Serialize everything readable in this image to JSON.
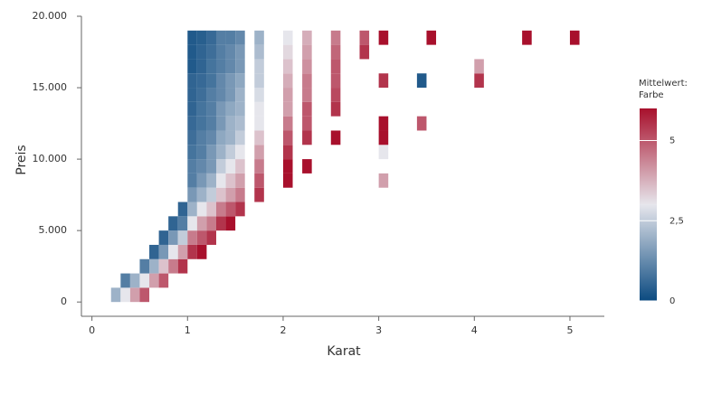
{
  "chart_data": {
    "type": "heatmap",
    "xlabel": "Karat",
    "ylabel": "Preis",
    "xlim": [
      -0.11,
      5.36
    ],
    "xticks": [
      0,
      1,
      2,
      3,
      4,
      5
    ],
    "ylim": [
      -1000,
      20000
    ],
    "yticks": [
      0,
      {
        "value": 5000,
        "label": "5.000"
      },
      {
        "value": 10000,
        "label": "10.000"
      },
      {
        "value": 15000,
        "label": "15.000"
      },
      {
        "value": 20000,
        "label": "20.000"
      }
    ],
    "colorbar_title": [
      "Mittelwert:",
      "Farbe"
    ],
    "clim": [
      0,
      6
    ],
    "cticks": [
      0,
      {
        "value": 2.5,
        "label": "2,5"
      },
      5
    ],
    "colormap": [
      "#0b4a80",
      "#e6e6ec",
      "#a8102c"
    ],
    "cells": [
      [
        0.2,
        0,
        2
      ],
      [
        0.3,
        0,
        3
      ],
      [
        0.3,
        1000,
        1
      ],
      [
        0.4,
        0,
        4
      ],
      [
        0.4,
        1000,
        2
      ],
      [
        0.5,
        0,
        5
      ],
      [
        0.5,
        1000,
        3
      ],
      [
        0.5,
        2000,
        1
      ],
      [
        0.6,
        1000,
        4
      ],
      [
        0.6,
        2000,
        2
      ],
      [
        0.6,
        3000,
        0.5
      ],
      [
        0.7,
        1000,
        5
      ],
      [
        0.7,
        2000,
        3.5
      ],
      [
        0.7,
        3000,
        1.5
      ],
      [
        0.7,
        4000,
        0.5
      ],
      [
        0.8,
        2000,
        4.5
      ],
      [
        0.8,
        3000,
        3
      ],
      [
        0.8,
        4000,
        1.5
      ],
      [
        0.8,
        5000,
        0.5
      ],
      [
        0.9,
        2000,
        5.5
      ],
      [
        0.9,
        3000,
        4
      ],
      [
        0.9,
        4000,
        2.5
      ],
      [
        0.9,
        5000,
        1
      ],
      [
        0.9,
        6000,
        0.5
      ],
      [
        1.0,
        3000,
        5.5
      ],
      [
        1.0,
        4000,
        4.5
      ],
      [
        1.0,
        5000,
        3
      ],
      [
        1.0,
        6000,
        2
      ],
      [
        1.0,
        7000,
        1.5
      ],
      [
        1.0,
        8000,
        1
      ],
      [
        1.0,
        9000,
        1
      ],
      [
        1.0,
        10000,
        0.8
      ],
      [
        1.0,
        11000,
        0.7
      ],
      [
        1.0,
        12000,
        0.6
      ],
      [
        1.0,
        13000,
        0.5
      ],
      [
        1.0,
        14000,
        0.5
      ],
      [
        1.0,
        15000,
        0.5
      ],
      [
        1.0,
        16000,
        0.3
      ],
      [
        1.0,
        17000,
        0.3
      ],
      [
        1.0,
        18000,
        0.3
      ],
      [
        1.1,
        3000,
        6
      ],
      [
        1.1,
        4000,
        5
      ],
      [
        1.1,
        5000,
        4
      ],
      [
        1.1,
        6000,
        3
      ],
      [
        1.1,
        7000,
        2
      ],
      [
        1.1,
        8000,
        1.5
      ],
      [
        1.1,
        9000,
        1.2
      ],
      [
        1.1,
        10000,
        1
      ],
      [
        1.1,
        11000,
        1
      ],
      [
        1.1,
        12000,
        0.8
      ],
      [
        1.1,
        13000,
        0.8
      ],
      [
        1.1,
        14000,
        0.7
      ],
      [
        1.1,
        15000,
        0.6
      ],
      [
        1.1,
        16000,
        0.5
      ],
      [
        1.1,
        17000,
        0.5
      ],
      [
        1.1,
        18000,
        0.4
      ],
      [
        1.2,
        4000,
        5.5
      ],
      [
        1.2,
        5000,
        4.5
      ],
      [
        1.2,
        6000,
        3.5
      ],
      [
        1.2,
        7000,
        2.5
      ],
      [
        1.2,
        8000,
        2
      ],
      [
        1.2,
        9000,
        1.5
      ],
      [
        1.2,
        10000,
        1.5
      ],
      [
        1.2,
        11000,
        1.2
      ],
      [
        1.2,
        12000,
        1
      ],
      [
        1.2,
        13000,
        1
      ],
      [
        1.2,
        14000,
        1
      ],
      [
        1.2,
        15000,
        0.8
      ],
      [
        1.2,
        16000,
        0.8
      ],
      [
        1.2,
        17000,
        0.7
      ],
      [
        1.2,
        18000,
        0.6
      ],
      [
        1.3,
        5000,
        5.5
      ],
      [
        1.3,
        6000,
        4.5
      ],
      [
        1.3,
        7000,
        3.5
      ],
      [
        1.3,
        8000,
        3
      ],
      [
        1.3,
        9000,
        2.5
      ],
      [
        1.3,
        10000,
        2
      ],
      [
        1.3,
        11000,
        1.8
      ],
      [
        1.3,
        12000,
        1.5
      ],
      [
        1.3,
        13000,
        1.5
      ],
      [
        1.3,
        14000,
        1.2
      ],
      [
        1.3,
        15000,
        1.2
      ],
      [
        1.3,
        16000,
        1
      ],
      [
        1.3,
        17000,
        1
      ],
      [
        1.3,
        18000,
        1
      ],
      [
        1.4,
        5000,
        6
      ],
      [
        1.4,
        6000,
        5
      ],
      [
        1.4,
        7000,
        4
      ],
      [
        1.4,
        8000,
        3.5
      ],
      [
        1.4,
        9000,
        3
      ],
      [
        1.4,
        10000,
        2.5
      ],
      [
        1.4,
        11000,
        2
      ],
      [
        1.4,
        12000,
        2
      ],
      [
        1.4,
        13000,
        1.8
      ],
      [
        1.4,
        14000,
        1.5
      ],
      [
        1.4,
        15000,
        1.5
      ],
      [
        1.4,
        16000,
        1.2
      ],
      [
        1.4,
        17000,
        1.2
      ],
      [
        1.4,
        18000,
        1
      ],
      [
        1.5,
        6000,
        5.5
      ],
      [
        1.5,
        7000,
        4.5
      ],
      [
        1.5,
        8000,
        4
      ],
      [
        1.5,
        9000,
        3.5
      ],
      [
        1.5,
        10000,
        3
      ],
      [
        1.5,
        11000,
        2.5
      ],
      [
        1.5,
        12000,
        2.2
      ],
      [
        1.5,
        13000,
        2
      ],
      [
        1.5,
        14000,
        2
      ],
      [
        1.5,
        15000,
        1.8
      ],
      [
        1.5,
        16000,
        1.5
      ],
      [
        1.5,
        17000,
        1.5
      ],
      [
        1.5,
        18000,
        1.2
      ],
      [
        1.7,
        7000,
        5.5
      ],
      [
        1.7,
        8000,
        5
      ],
      [
        1.7,
        9000,
        4.5
      ],
      [
        1.7,
        10000,
        4
      ],
      [
        1.7,
        11000,
        3.5
      ],
      [
        1.7,
        12000,
        3
      ],
      [
        1.7,
        13000,
        3
      ],
      [
        1.7,
        14000,
        2.8
      ],
      [
        1.7,
        15000,
        2.5
      ],
      [
        1.7,
        16000,
        2.5
      ],
      [
        1.7,
        17000,
        2.2
      ],
      [
        1.7,
        18000,
        2
      ],
      [
        2.0,
        8000,
        6
      ],
      [
        2.0,
        9000,
        6
      ],
      [
        2.0,
        10000,
        5.5
      ],
      [
        2.0,
        11000,
        5
      ],
      [
        2.0,
        12000,
        4.5
      ],
      [
        2.0,
        13000,
        4
      ],
      [
        2.0,
        14000,
        4
      ],
      [
        2.0,
        15000,
        3.8
      ],
      [
        2.0,
        16000,
        3.5
      ],
      [
        2.0,
        17000,
        3.2
      ],
      [
        2.0,
        18000,
        3
      ],
      [
        2.2,
        9000,
        6
      ],
      [
        2.2,
        11000,
        5.5
      ],
      [
        2.2,
        12000,
        5
      ],
      [
        2.2,
        13000,
        5
      ],
      [
        2.2,
        14000,
        4.5
      ],
      [
        2.2,
        15000,
        4.5
      ],
      [
        2.2,
        16000,
        4.2
      ],
      [
        2.2,
        17000,
        4
      ],
      [
        2.2,
        18000,
        3.8
      ],
      [
        2.5,
        11000,
        6
      ],
      [
        2.5,
        13000,
        5.5
      ],
      [
        2.5,
        14000,
        5.2
      ],
      [
        2.5,
        15000,
        5
      ],
      [
        2.5,
        16000,
        5
      ],
      [
        2.5,
        17000,
        4.8
      ],
      [
        2.5,
        18000,
        4.5
      ],
      [
        2.8,
        17000,
        5.5
      ],
      [
        2.8,
        18000,
        5
      ],
      [
        3.0,
        8000,
        4
      ],
      [
        3.0,
        10000,
        3
      ],
      [
        3.0,
        11000,
        6
      ],
      [
        3.0,
        12000,
        6
      ],
      [
        3.0,
        15000,
        5.5
      ],
      [
        3.0,
        18000,
        6
      ],
      [
        3.4,
        15000,
        0.3
      ],
      [
        3.4,
        12000,
        5
      ],
      [
        3.5,
        18000,
        6
      ],
      [
        4.0,
        15000,
        5.5
      ],
      [
        4.0,
        16000,
        4
      ],
      [
        4.5,
        18000,
        6
      ],
      [
        5.0,
        18000,
        6
      ]
    ]
  }
}
